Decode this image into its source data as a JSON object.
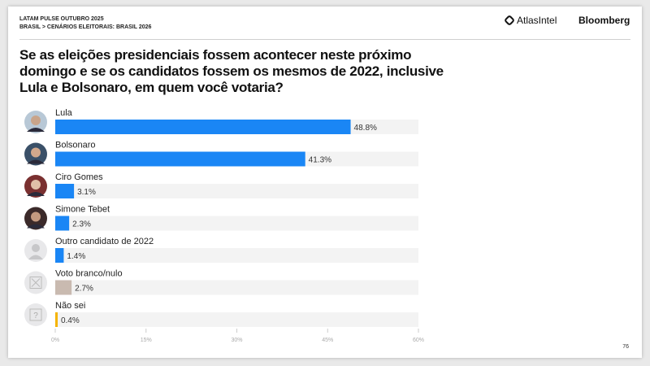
{
  "header": {
    "line1": "LATAM PULSE OUTUBRO 2025",
    "line2": "BRASIL > CENÁRIOS ELEITORAIS: BRASIL 2026",
    "brand1": "AtlasIntel",
    "brand2": "Bloomberg"
  },
  "page_number": "76",
  "chart_data": {
    "type": "bar",
    "orientation": "horizontal",
    "title": "Se as eleições presidenciais fossem acontecer neste próximo domingo e se os candidatos fossem os mesmos de 2022, inclusive Lula e Bolsonaro, em quem você votaria?",
    "categories": [
      "Lula",
      "Bolsonaro",
      "Ciro Gomes",
      "Simone Tebet",
      "Outro candidato de 2022",
      "Voto branco/nulo",
      "Não sei"
    ],
    "values": [
      48.8,
      41.3,
      3.1,
      2.3,
      1.4,
      2.7,
      0.4
    ],
    "data_labels": [
      "48.8%",
      "41.3%",
      "3.1%",
      "2.3%",
      "1.4%",
      "2.7%",
      "0.4%"
    ],
    "colors": [
      "#1a86f5",
      "#1a86f5",
      "#1a86f5",
      "#1a86f5",
      "#1a86f5",
      "#c9bab0",
      "#f5b400"
    ],
    "icons": [
      "photo-lula",
      "photo-bolsonaro",
      "photo-ciro",
      "photo-tebet",
      "person-silhouette-icon",
      "x-box-icon",
      "question-box-icon"
    ],
    "xlim": [
      0,
      60
    ],
    "ticks": [
      "0%",
      "15%",
      "30%",
      "45%",
      "60%"
    ],
    "tick_values": [
      0,
      15,
      30,
      45,
      60
    ],
    "track_color": "#f3f3f3",
    "grid": false
  }
}
